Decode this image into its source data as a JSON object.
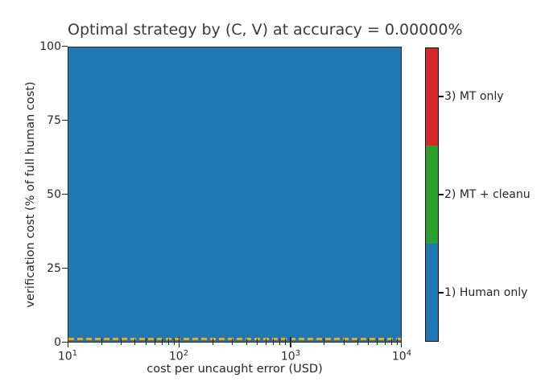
{
  "title": "Optimal strategy by (C, V) at accuracy = 0.00000%",
  "colors": {
    "human_only_blue": "#1f77b4",
    "mt_cleanup_green": "#2ca02c",
    "mt_only_red": "#d62728",
    "boundary_orange": "#ffa500",
    "axis_text": "#262626",
    "background": "#ffffff"
  },
  "chart_data": {
    "type": "heatmap",
    "title": "Optimal strategy by (C, V) at accuracy = 0.00000%",
    "xlabel": "cost per uncaught error (USD)",
    "ylabel": "verification cost (% of full human cost)",
    "x_scale": "log",
    "x_range": [
      10,
      10000
    ],
    "y_range": [
      0,
      100
    ],
    "x_ticks": [
      {
        "base": "10",
        "exp": "1"
      },
      {
        "base": "10",
        "exp": "2"
      },
      {
        "base": "10",
        "exp": "3"
      },
      {
        "base": "10",
        "exp": "4"
      }
    ],
    "y_ticks": [
      "0",
      "25",
      "50",
      "75",
      "100"
    ],
    "grid": false,
    "uniform_value": {
      "class": 1,
      "label": "1) Human only",
      "coverage": "entire plotted (C, V) domain is class 1 (blue)"
    },
    "boundary_line": {
      "y": 0,
      "style": "dashed",
      "color": "#ffa500"
    },
    "legend_position": "colorbar-right"
  },
  "colorbar": {
    "items": [
      {
        "value": 1,
        "label": "1) Human only",
        "color": "#1f77b4"
      },
      {
        "value": 2,
        "label": "2) MT + cleanu",
        "color": "#2ca02c"
      },
      {
        "value": 3,
        "label": "3) MT only",
        "color": "#d62728"
      }
    ]
  }
}
